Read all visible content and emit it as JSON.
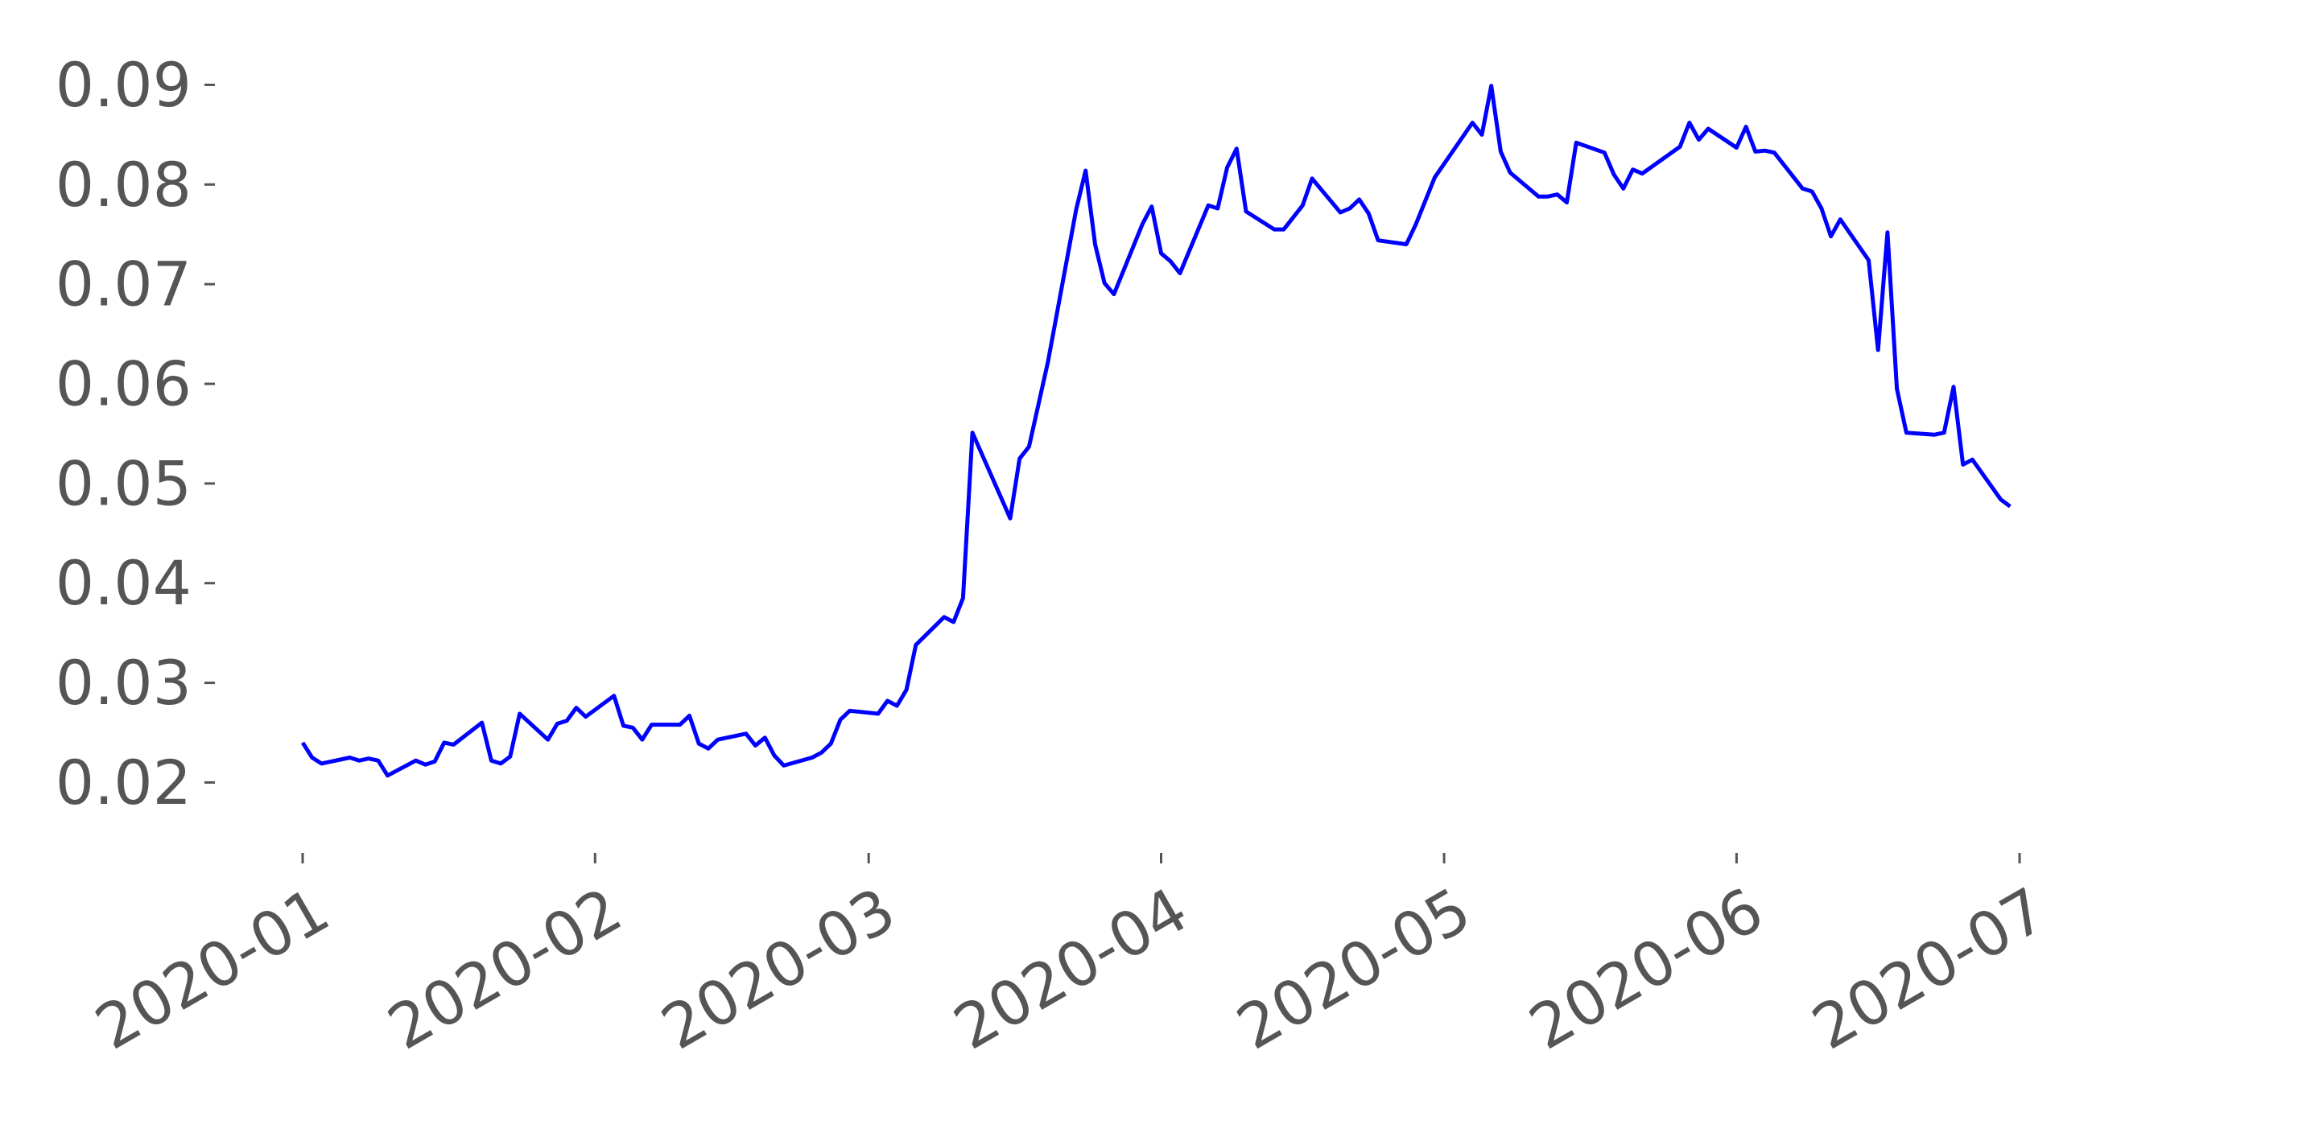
{
  "chart_data": {
    "type": "line",
    "title": "",
    "xlabel": "",
    "ylabel": "",
    "grid": false,
    "xlim": [
      "2020-01-01",
      "2020-07-01"
    ],
    "ylim": [
      0.0165,
      0.0925
    ],
    "x_ticks": [
      "2020-01",
      "2020-02",
      "2020-03",
      "2020-04",
      "2020-05",
      "2020-06",
      "2020-07"
    ],
    "y_ticks": [
      "0.02",
      "0.03",
      "0.04",
      "0.05",
      "0.06",
      "0.07",
      "0.08",
      "0.09"
    ],
    "colors": {
      "line": "#0000ff",
      "text": "#555555"
    },
    "series": [
      {
        "points": [
          [
            "2020-01-01",
            0.024
          ],
          [
            "2020-01-02",
            0.0225
          ],
          [
            "2020-01-03",
            0.0219
          ],
          [
            "2020-01-06",
            0.0225
          ],
          [
            "2020-01-07",
            0.0222
          ],
          [
            "2020-01-08",
            0.0224
          ],
          [
            "2020-01-09",
            0.0222
          ],
          [
            "2020-01-10",
            0.0207
          ],
          [
            "2020-01-13",
            0.0222
          ],
          [
            "2020-01-14",
            0.0218
          ],
          [
            "2020-01-15",
            0.0221
          ],
          [
            "2020-01-16",
            0.024
          ],
          [
            "2020-01-17",
            0.0238
          ],
          [
            "2020-01-20",
            0.026
          ],
          [
            "2020-01-21",
            0.0222
          ],
          [
            "2020-01-22",
            0.0219
          ],
          [
            "2020-01-23",
            0.0226
          ],
          [
            "2020-01-24",
            0.0269
          ],
          [
            "2020-01-27",
            0.0243
          ],
          [
            "2020-01-28",
            0.0259
          ],
          [
            "2020-01-29",
            0.0262
          ],
          [
            "2020-01-30",
            0.0275
          ],
          [
            "2020-01-31",
            0.0266
          ],
          [
            "2020-02-03",
            0.0287
          ],
          [
            "2020-02-04",
            0.0257
          ],
          [
            "2020-02-05",
            0.0255
          ],
          [
            "2020-02-06",
            0.0243
          ],
          [
            "2020-02-07",
            0.0258
          ],
          [
            "2020-02-10",
            0.0258
          ],
          [
            "2020-02-11",
            0.0267
          ],
          [
            "2020-02-12",
            0.0239
          ],
          [
            "2020-02-13",
            0.0234
          ],
          [
            "2020-02-14",
            0.0243
          ],
          [
            "2020-02-17",
            0.0249
          ],
          [
            "2020-02-18",
            0.0237
          ],
          [
            "2020-02-19",
            0.0245
          ],
          [
            "2020-02-20",
            0.0227
          ],
          [
            "2020-02-21",
            0.0217
          ],
          [
            "2020-02-24",
            0.0225
          ],
          [
            "2020-02-25",
            0.023
          ],
          [
            "2020-02-26",
            0.0239
          ],
          [
            "2020-02-27",
            0.0263
          ],
          [
            "2020-02-28",
            0.0272
          ],
          [
            "2020-03-02",
            0.0269
          ],
          [
            "2020-03-03",
            0.0282
          ],
          [
            "2020-03-04",
            0.0277
          ],
          [
            "2020-03-05",
            0.0293
          ],
          [
            "2020-03-06",
            0.0338
          ],
          [
            "2020-03-09",
            0.0366
          ],
          [
            "2020-03-10",
            0.0361
          ],
          [
            "2020-03-11",
            0.0385
          ],
          [
            "2020-03-12",
            0.0551
          ],
          [
            "2020-03-16",
            0.0465
          ],
          [
            "2020-03-17",
            0.0525
          ],
          [
            "2020-03-18",
            0.0537
          ],
          [
            "2020-03-20",
            0.0622
          ],
          [
            "2020-03-23",
            0.0775
          ],
          [
            "2020-03-24",
            0.0814
          ],
          [
            "2020-03-25",
            0.074
          ],
          [
            "2020-03-26",
            0.0701
          ],
          [
            "2020-03-27",
            0.069
          ],
          [
            "2020-03-30",
            0.076
          ],
          [
            "2020-03-31",
            0.0778
          ],
          [
            "2020-04-01",
            0.0731
          ],
          [
            "2020-04-02",
            0.0723
          ],
          [
            "2020-04-03",
            0.0711
          ],
          [
            "2020-04-06",
            0.0779
          ],
          [
            "2020-04-07",
            0.0776
          ],
          [
            "2020-04-08",
            0.0817
          ],
          [
            "2020-04-09",
            0.0836
          ],
          [
            "2020-04-10",
            0.0773
          ],
          [
            "2020-04-13",
            0.0755
          ],
          [
            "2020-04-14",
            0.0755
          ],
          [
            "2020-04-15",
            0.0767
          ],
          [
            "2020-04-16",
            0.0779
          ],
          [
            "2020-04-17",
            0.0806
          ],
          [
            "2020-04-20",
            0.0772
          ],
          [
            "2020-04-21",
            0.0776
          ],
          [
            "2020-04-22",
            0.0785
          ],
          [
            "2020-04-23",
            0.0771
          ],
          [
            "2020-04-24",
            0.0744
          ],
          [
            "2020-04-27",
            0.074
          ],
          [
            "2020-04-28",
            0.076
          ],
          [
            "2020-04-30",
            0.0807
          ],
          [
            "2020-05-04",
            0.0862
          ],
          [
            "2020-05-05",
            0.085
          ],
          [
            "2020-05-06",
            0.0899
          ],
          [
            "2020-05-07",
            0.0833
          ],
          [
            "2020-05-08",
            0.0812
          ],
          [
            "2020-05-11",
            0.0788
          ],
          [
            "2020-05-12",
            0.0788
          ],
          [
            "2020-05-13",
            0.079
          ],
          [
            "2020-05-14",
            0.0782
          ],
          [
            "2020-05-15",
            0.0842
          ],
          [
            "2020-05-18",
            0.0832
          ],
          [
            "2020-05-19",
            0.081
          ],
          [
            "2020-05-20",
            0.0796
          ],
          [
            "2020-05-21",
            0.0815
          ],
          [
            "2020-05-22",
            0.0811
          ],
          [
            "2020-05-26",
            0.0838
          ],
          [
            "2020-05-27",
            0.0862
          ],
          [
            "2020-05-28",
            0.0845
          ],
          [
            "2020-05-29",
            0.0856
          ],
          [
            "2020-06-01",
            0.0837
          ],
          [
            "2020-06-02",
            0.0858
          ],
          [
            "2020-06-03",
            0.0833
          ],
          [
            "2020-06-04",
            0.0834
          ],
          [
            "2020-06-05",
            0.0832
          ],
          [
            "2020-06-08",
            0.0796
          ],
          [
            "2020-06-09",
            0.0793
          ],
          [
            "2020-06-10",
            0.0776
          ],
          [
            "2020-06-11",
            0.0748
          ],
          [
            "2020-06-12",
            0.0765
          ],
          [
            "2020-06-15",
            0.0724
          ],
          [
            "2020-06-16",
            0.0634
          ],
          [
            "2020-06-17",
            0.0752
          ],
          [
            "2020-06-18",
            0.0595
          ],
          [
            "2020-06-19",
            0.0551
          ],
          [
            "2020-06-22",
            0.0549
          ],
          [
            "2020-06-23",
            0.0551
          ],
          [
            "2020-06-24",
            0.0597
          ],
          [
            "2020-06-25",
            0.0519
          ],
          [
            "2020-06-26",
            0.0524
          ],
          [
            "2020-06-29",
            0.0484
          ],
          [
            "2020-06-30",
            0.0477
          ]
        ]
      }
    ]
  }
}
